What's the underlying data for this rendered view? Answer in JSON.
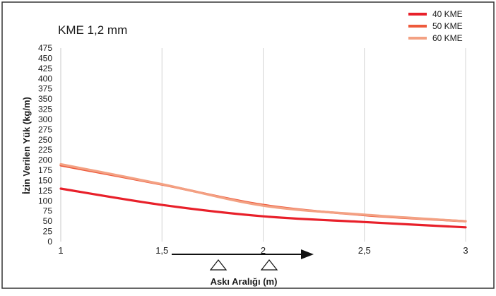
{
  "chart_data": {
    "type": "line",
    "title": "KME 1,2 mm",
    "xlabel": "Askı Aralığı (m)",
    "ylabel": "İzin Verilen Yük (kg/m)",
    "xlim": [
      1,
      3
    ],
    "ylim": [
      0,
      475
    ],
    "x_ticks": [
      1,
      1.5,
      2,
      2.5,
      3
    ],
    "x_tick_labels": [
      "1",
      "1,5",
      "2",
      "2,5",
      "3"
    ],
    "y_ticks": [
      0,
      25,
      50,
      75,
      100,
      125,
      150,
      175,
      200,
      225,
      250,
      275,
      300,
      325,
      350,
      375,
      400,
      425,
      450,
      475
    ],
    "y_tick_labels": [
      "0",
      "25",
      "50",
      "75",
      "100",
      "125",
      "150",
      "175",
      "200",
      "225",
      "250",
      "275",
      "300",
      "325",
      "350",
      "375",
      "400",
      "425",
      "450",
      "475"
    ],
    "grid": "vertical",
    "legend_position": "top-right",
    "series": [
      {
        "name": "40 KME",
        "color": "#e8202a",
        "x": [
          1,
          1.5,
          2,
          2.5,
          3
        ],
        "y": [
          130,
          90,
          62,
          48,
          35
        ]
      },
      {
        "name": "50 KME",
        "color": "#ee5a3c",
        "x": [
          1,
          1.5,
          2,
          2.5,
          3
        ],
        "y": [
          187,
          140,
          90,
          65,
          50
        ]
      },
      {
        "name": "60 KME",
        "color": "#f3a183",
        "x": [
          1,
          1.5,
          2,
          2.5,
          3
        ],
        "y": [
          190,
          141,
          88,
          66,
          50
        ]
      }
    ]
  }
}
